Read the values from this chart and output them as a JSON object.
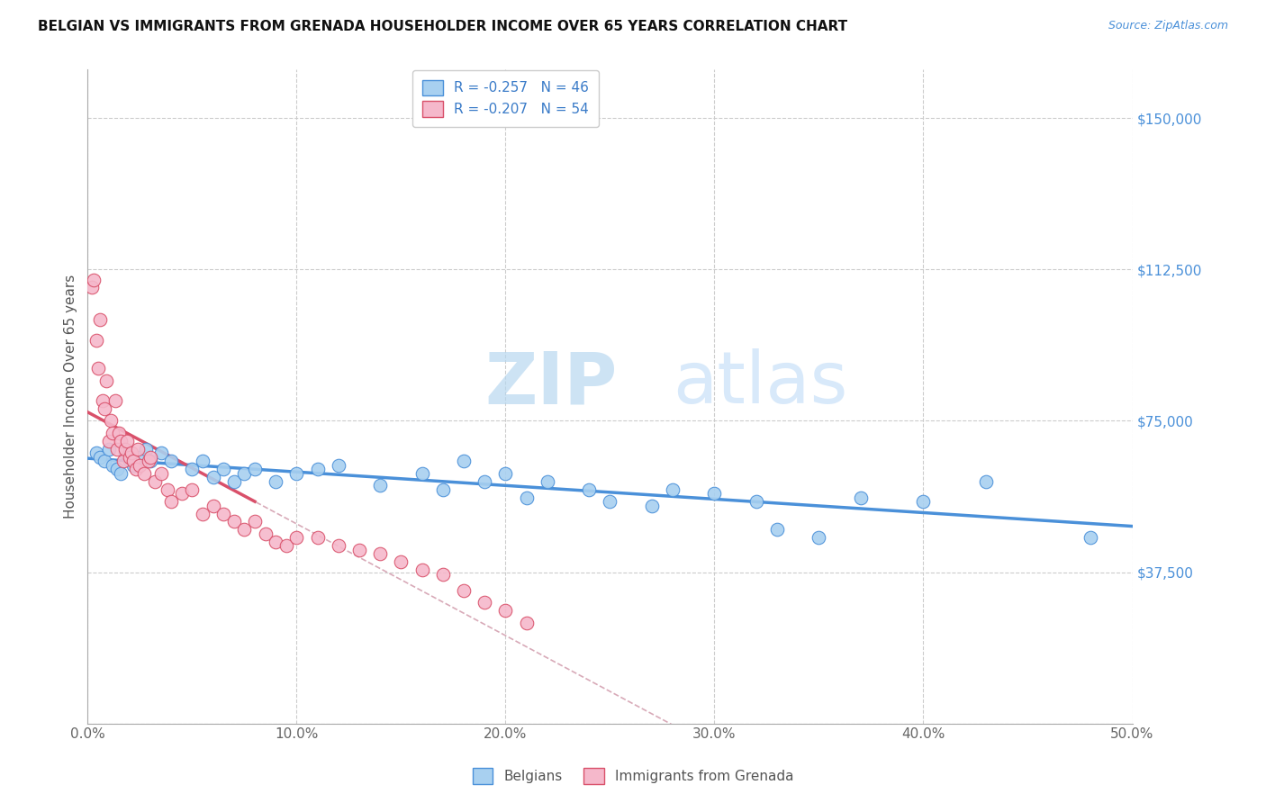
{
  "title": "BELGIAN VS IMMIGRANTS FROM GRENADA HOUSEHOLDER INCOME OVER 65 YEARS CORRELATION CHART",
  "source": "Source: ZipAtlas.com",
  "ylabel": "Householder Income Over 65 years",
  "xlabel_ticks": [
    "0.0%",
    "10.0%",
    "20.0%",
    "30.0%",
    "40.0%",
    "50.0%"
  ],
  "xlabel_vals": [
    0.0,
    10.0,
    20.0,
    30.0,
    40.0,
    50.0
  ],
  "ytick_vals": [
    0,
    37500,
    75000,
    112500,
    150000
  ],
  "ytick_labels": [
    "",
    "$37,500",
    "$75,000",
    "$112,500",
    "$150,000"
  ],
  "xlim": [
    0,
    50
  ],
  "ylim": [
    0,
    162000
  ],
  "legend_label_belgian": "Belgians",
  "legend_label_grenada": "Immigrants from Grenada",
  "color_belgian": "#a8d0f0",
  "color_grenada": "#f5b8cb",
  "color_trendline_belgian": "#4a90d9",
  "color_trendline_grenada": "#d9506a",
  "color_dashed": "#d8aab8",
  "belgian_x": [
    0.4,
    0.6,
    0.8,
    1.0,
    1.2,
    1.4,
    1.6,
    1.8,
    2.0,
    2.2,
    2.5,
    2.8,
    3.0,
    3.5,
    4.0,
    5.0,
    5.5,
    6.0,
    6.5,
    7.0,
    7.5,
    8.0,
    9.0,
    10.0,
    11.0,
    12.0,
    14.0,
    16.0,
    17.0,
    18.0,
    19.0,
    20.0,
    21.0,
    22.0,
    24.0,
    25.0,
    27.0,
    28.0,
    30.0,
    32.0,
    33.0,
    35.0,
    37.0,
    40.0,
    43.0,
    48.0
  ],
  "belgian_y": [
    67000,
    66000,
    65000,
    68000,
    64000,
    63000,
    62000,
    67000,
    65000,
    64000,
    66000,
    68000,
    65000,
    67000,
    65000,
    63000,
    65000,
    61000,
    63000,
    60000,
    62000,
    63000,
    60000,
    62000,
    63000,
    64000,
    59000,
    62000,
    58000,
    65000,
    60000,
    62000,
    56000,
    60000,
    58000,
    55000,
    54000,
    58000,
    57000,
    55000,
    48000,
    46000,
    56000,
    55000,
    60000,
    46000
  ],
  "grenada_x": [
    0.2,
    0.3,
    0.4,
    0.5,
    0.6,
    0.7,
    0.8,
    0.9,
    1.0,
    1.1,
    1.2,
    1.3,
    1.4,
    1.5,
    1.6,
    1.7,
    1.8,
    1.9,
    2.0,
    2.1,
    2.2,
    2.3,
    2.4,
    2.5,
    2.7,
    2.9,
    3.0,
    3.2,
    3.5,
    3.8,
    4.0,
    4.5,
    5.0,
    5.5,
    6.0,
    6.5,
    7.0,
    7.5,
    8.0,
    8.5,
    9.0,
    9.5,
    10.0,
    11.0,
    12.0,
    13.0,
    14.0,
    15.0,
    16.0,
    17.0,
    18.0,
    19.0,
    20.0,
    21.0
  ],
  "grenada_y": [
    108000,
    110000,
    95000,
    88000,
    100000,
    80000,
    78000,
    85000,
    70000,
    75000,
    72000,
    80000,
    68000,
    72000,
    70000,
    65000,
    68000,
    70000,
    66000,
    67000,
    65000,
    63000,
    68000,
    64000,
    62000,
    65000,
    66000,
    60000,
    62000,
    58000,
    55000,
    57000,
    58000,
    52000,
    54000,
    52000,
    50000,
    48000,
    50000,
    47000,
    45000,
    44000,
    46000,
    46000,
    44000,
    43000,
    42000,
    40000,
    38000,
    37000,
    33000,
    30000,
    28000,
    25000
  ]
}
